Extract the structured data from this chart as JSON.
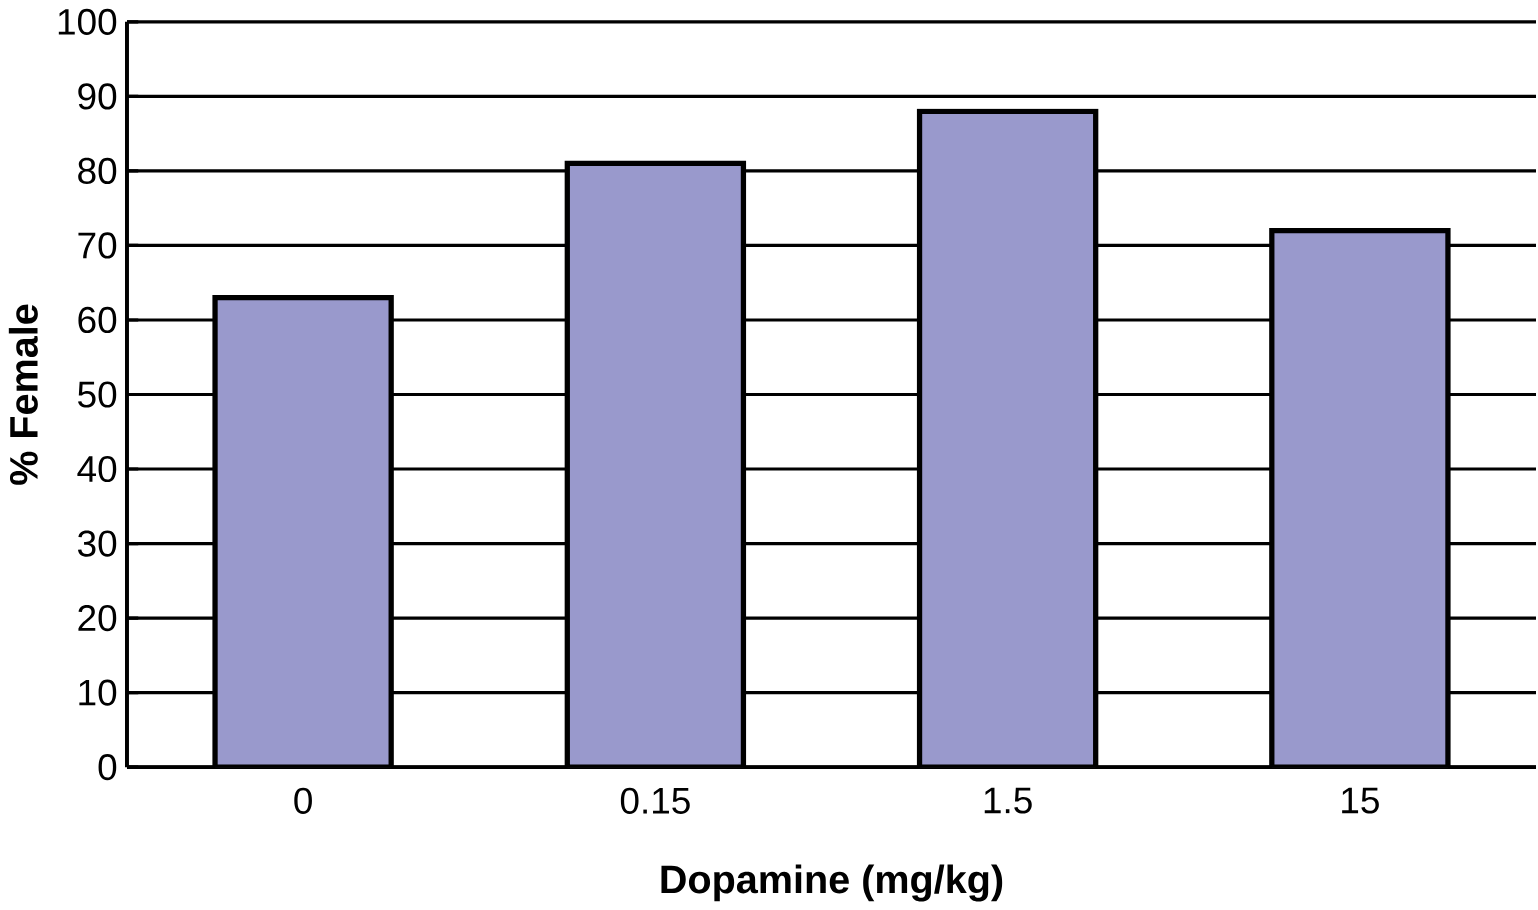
{
  "chart_data": {
    "type": "bar",
    "xlabel": "Dopamine (mg/kg)",
    "ylabel": "% Female",
    "categories": [
      "0",
      "0.15",
      "1.5",
      "15"
    ],
    "values": [
      63,
      81,
      88,
      72
    ],
    "color": "#9999cc",
    "ylim": [
      0,
      100
    ],
    "yticks": [
      0,
      10,
      20,
      30,
      40,
      50,
      60,
      70,
      80,
      90,
      100
    ],
    "grid": "y"
  }
}
